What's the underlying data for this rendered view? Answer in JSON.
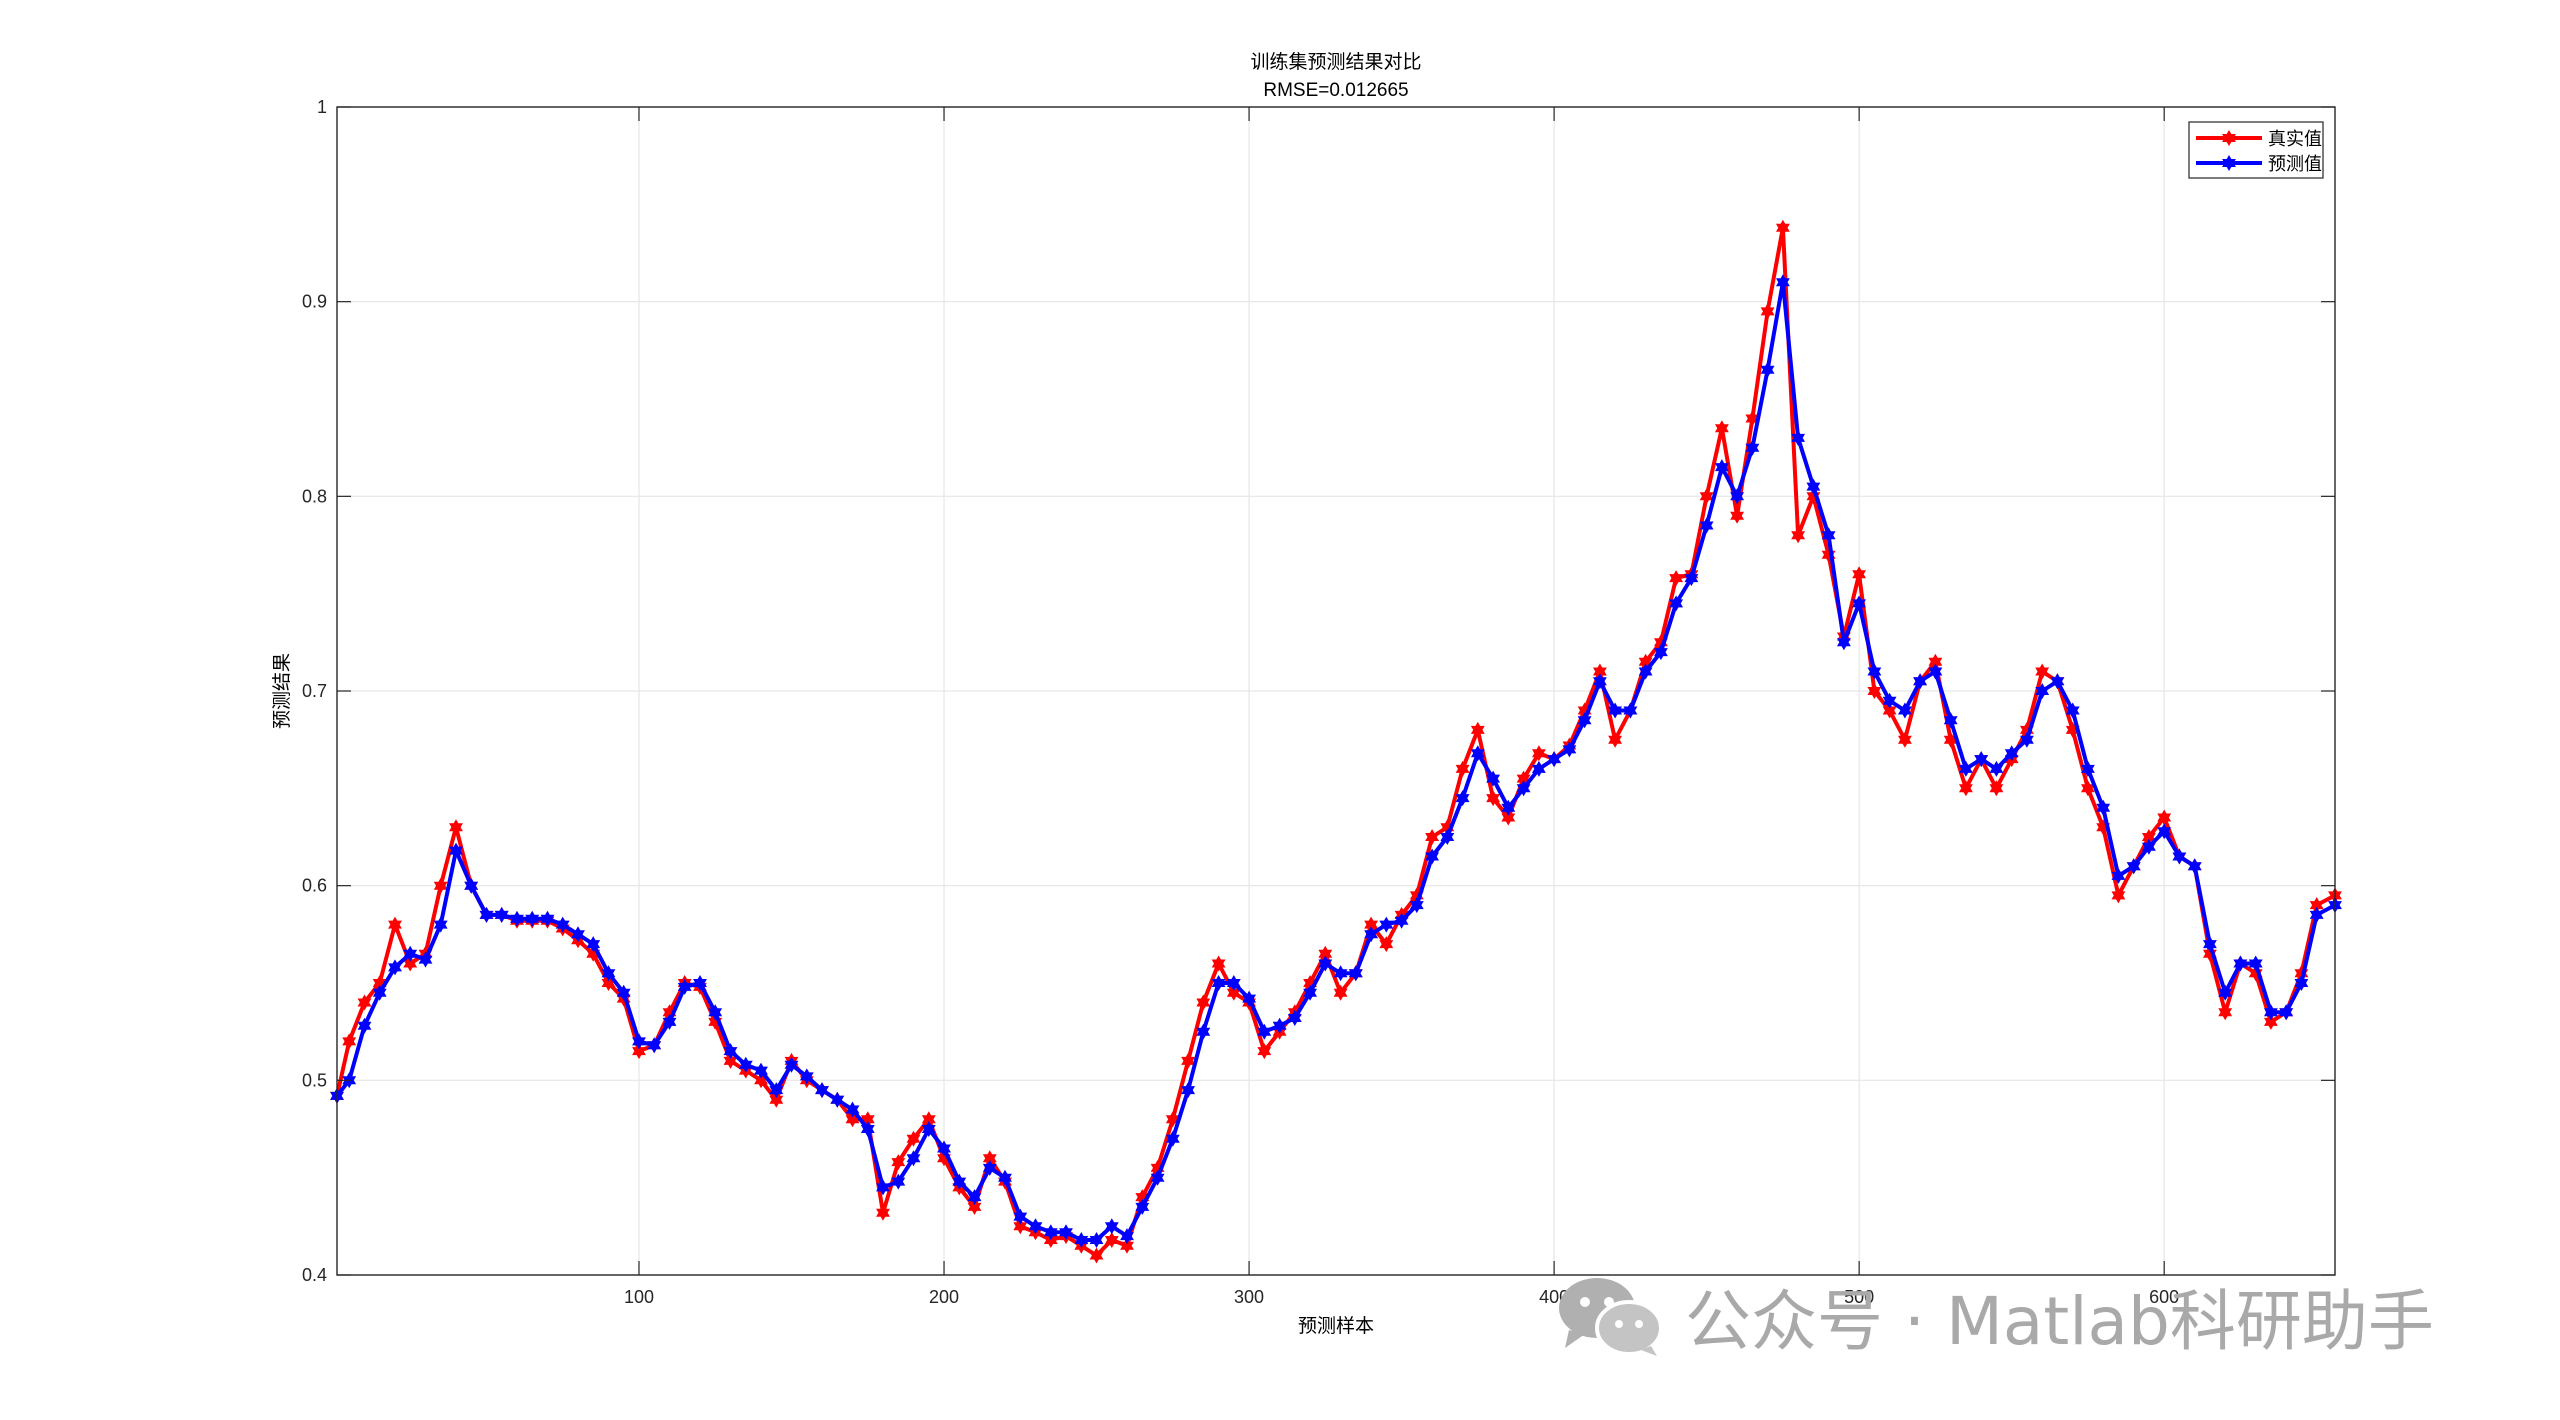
{
  "chart_data": {
    "type": "line",
    "title": "训练集预测结果对比",
    "subtitle": "RMSE=0.012665",
    "xlabel": "预测样本",
    "ylabel": "预测结果",
    "xlim": [
      1,
      656
    ],
    "ylim": [
      0.4,
      1
    ],
    "xticks": [
      100,
      200,
      300,
      400,
      500,
      600
    ],
    "yticks": [
      0.4,
      0.5,
      0.6,
      0.7,
      0.8,
      0.9,
      1
    ],
    "ytick_labels": [
      "0.4",
      "0.5",
      "0.6",
      "0.7",
      "0.8",
      "0.9",
      "1"
    ],
    "grid": true,
    "legend_position": "top-right",
    "marker": "hexagram",
    "series": [
      {
        "name": "真实值",
        "color": "#ff0000",
        "x": [
          1,
          5,
          10,
          15,
          20,
          25,
          30,
          35,
          40,
          45,
          50,
          55,
          60,
          65,
          70,
          75,
          80,
          85,
          90,
          95,
          100,
          105,
          110,
          115,
          120,
          125,
          130,
          135,
          140,
          145,
          150,
          155,
          160,
          165,
          170,
          175,
          180,
          185,
          190,
          195,
          200,
          205,
          210,
          215,
          220,
          225,
          230,
          235,
          240,
          245,
          250,
          255,
          260,
          265,
          270,
          275,
          280,
          285,
          290,
          295,
          300,
          305,
          310,
          315,
          320,
          325,
          330,
          335,
          340,
          345,
          350,
          355,
          360,
          365,
          370,
          375,
          380,
          385,
          390,
          395,
          400,
          405,
          410,
          415,
          420,
          425,
          430,
          435,
          440,
          445,
          450,
          455,
          460,
          465,
          470,
          475,
          480,
          485,
          490,
          495,
          500,
          505,
          510,
          515,
          520,
          525,
          530,
          535,
          540,
          545,
          550,
          555,
          560,
          565,
          570,
          575,
          580,
          585,
          590,
          595,
          600,
          605,
          610,
          615,
          620,
          625,
          630,
          635,
          640,
          645,
          650,
          656
        ],
        "values": [
          0.492,
          0.52,
          0.54,
          0.55,
          0.58,
          0.56,
          0.565,
          0.6,
          0.63,
          0.6,
          0.585,
          0.585,
          0.582,
          0.582,
          0.582,
          0.578,
          0.572,
          0.565,
          0.55,
          0.542,
          0.515,
          0.518,
          0.535,
          0.55,
          0.548,
          0.53,
          0.51,
          0.505,
          0.5,
          0.49,
          0.51,
          0.5,
          0.495,
          0.49,
          0.48,
          0.48,
          0.432,
          0.458,
          0.47,
          0.48,
          0.46,
          0.445,
          0.435,
          0.46,
          0.448,
          0.425,
          0.422,
          0.418,
          0.42,
          0.415,
          0.41,
          0.418,
          0.415,
          0.44,
          0.455,
          0.48,
          0.51,
          0.54,
          0.56,
          0.545,
          0.54,
          0.515,
          0.525,
          0.535,
          0.55,
          0.565,
          0.545,
          0.555,
          0.58,
          0.57,
          0.585,
          0.595,
          0.625,
          0.63,
          0.66,
          0.68,
          0.645,
          0.635,
          0.655,
          0.668,
          0.665,
          0.672,
          0.69,
          0.71,
          0.675,
          0.69,
          0.715,
          0.725,
          0.758,
          0.76,
          0.8,
          0.835,
          0.79,
          0.84,
          0.895,
          0.938,
          0.78,
          0.8,
          0.77,
          0.728,
          0.76,
          0.7,
          0.69,
          0.675,
          0.705,
          0.715,
          0.675,
          0.65,
          0.665,
          0.65,
          0.665,
          0.68,
          0.71,
          0.705,
          0.68,
          0.65,
          0.63,
          0.595,
          0.61,
          0.625,
          0.635,
          0.615,
          0.61,
          0.565,
          0.535,
          0.56,
          0.555,
          0.53,
          0.535,
          0.555,
          0.59,
          0.595
        ]
      },
      {
        "name": "预测值",
        "color": "#0000ff",
        "x": [
          1,
          5,
          10,
          15,
          20,
          25,
          30,
          35,
          40,
          45,
          50,
          55,
          60,
          65,
          70,
          75,
          80,
          85,
          90,
          95,
          100,
          105,
          110,
          115,
          120,
          125,
          130,
          135,
          140,
          145,
          150,
          155,
          160,
          165,
          170,
          175,
          180,
          185,
          190,
          195,
          200,
          205,
          210,
          215,
          220,
          225,
          230,
          235,
          240,
          245,
          250,
          255,
          260,
          265,
          270,
          275,
          280,
          285,
          290,
          295,
          300,
          305,
          310,
          315,
          320,
          325,
          330,
          335,
          340,
          345,
          350,
          355,
          360,
          365,
          370,
          375,
          380,
          385,
          390,
          395,
          400,
          405,
          410,
          415,
          420,
          425,
          430,
          435,
          440,
          445,
          450,
          455,
          460,
          465,
          470,
          475,
          480,
          485,
          490,
          495,
          500,
          505,
          510,
          515,
          520,
          525,
          530,
          535,
          540,
          545,
          550,
          555,
          560,
          565,
          570,
          575,
          580,
          585,
          590,
          595,
          600,
          605,
          610,
          615,
          620,
          625,
          630,
          635,
          640,
          645,
          650,
          656
        ],
        "values": [
          0.492,
          0.5,
          0.528,
          0.545,
          0.558,
          0.565,
          0.562,
          0.58,
          0.618,
          0.6,
          0.585,
          0.585,
          0.583,
          0.583,
          0.583,
          0.58,
          0.575,
          0.57,
          0.555,
          0.545,
          0.52,
          0.518,
          0.53,
          0.548,
          0.55,
          0.535,
          0.515,
          0.508,
          0.505,
          0.495,
          0.508,
          0.502,
          0.495,
          0.49,
          0.485,
          0.475,
          0.445,
          0.448,
          0.46,
          0.475,
          0.465,
          0.448,
          0.44,
          0.455,
          0.45,
          0.43,
          0.425,
          0.422,
          0.422,
          0.418,
          0.418,
          0.425,
          0.42,
          0.435,
          0.45,
          0.47,
          0.495,
          0.525,
          0.55,
          0.55,
          0.542,
          0.525,
          0.528,
          0.532,
          0.545,
          0.56,
          0.555,
          0.555,
          0.575,
          0.58,
          0.582,
          0.59,
          0.615,
          0.625,
          0.645,
          0.668,
          0.655,
          0.64,
          0.65,
          0.66,
          0.665,
          0.67,
          0.685,
          0.705,
          0.69,
          0.69,
          0.71,
          0.72,
          0.745,
          0.758,
          0.785,
          0.815,
          0.8,
          0.825,
          0.865,
          0.91,
          0.83,
          0.805,
          0.78,
          0.725,
          0.745,
          0.71,
          0.695,
          0.69,
          0.705,
          0.71,
          0.685,
          0.66,
          0.665,
          0.66,
          0.668,
          0.675,
          0.7,
          0.705,
          0.69,
          0.66,
          0.64,
          0.605,
          0.61,
          0.62,
          0.628,
          0.615,
          0.61,
          0.57,
          0.545,
          0.56,
          0.56,
          0.535,
          0.535,
          0.55,
          0.585,
          0.59
        ]
      }
    ]
  },
  "watermark": {
    "text": "公众号 · Matlab科研助手",
    "icon": "wechat-icon"
  }
}
